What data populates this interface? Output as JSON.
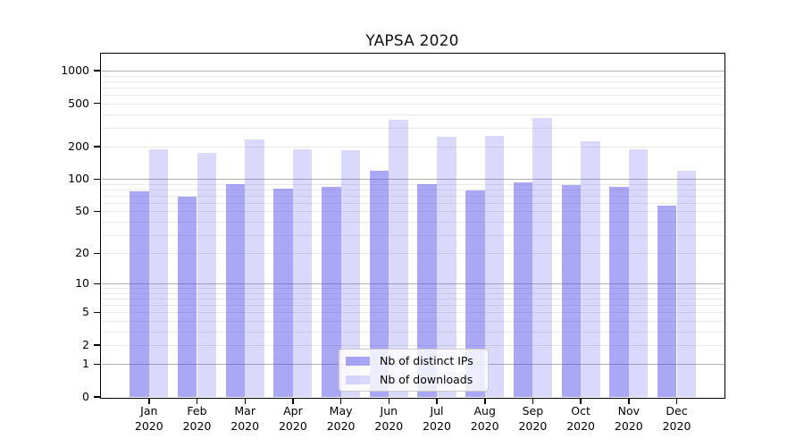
{
  "chart_data": {
    "type": "bar",
    "title": "YAPSA 2020",
    "categories": [
      "Jan",
      "Feb",
      "Mar",
      "Apr",
      "May",
      "Jun",
      "Jul",
      "Aug",
      "Sep",
      "Oct",
      "Nov",
      "Dec"
    ],
    "year": "2020",
    "series": [
      {
        "name": "Nb of distinct IPs",
        "key": "distinct-ips",
        "color_hex": "#aaa7f0",
        "color_rgba": "rgba(85,80,235,0.5)",
        "values": [
          77,
          68,
          90,
          82,
          85,
          119,
          90,
          79,
          94,
          88,
          84,
          57
        ]
      },
      {
        "name": "Nb of downloads",
        "key": "downloads",
        "color_hex": "#dcdbf8",
        "color_rgba": "rgba(85,80,235,0.22)",
        "values": [
          188,
          175,
          233,
          189,
          185,
          351,
          245,
          251,
          369,
          223,
          190,
          120
        ]
      }
    ],
    "xlabel": "",
    "ylabel": "",
    "yscale": "log10(1+y)",
    "ylim": [
      0,
      1440
    ],
    "yticks": [
      0,
      1,
      2,
      5,
      10,
      20,
      50,
      100,
      200,
      500,
      1000
    ],
    "grid": {
      "on": true,
      "major_values": [
        1,
        10,
        100,
        1000
      ],
      "minor_values": [
        2,
        3,
        4,
        5,
        6,
        7,
        8,
        9,
        20,
        30,
        40,
        50,
        60,
        70,
        80,
        90,
        200,
        300,
        400,
        500,
        600,
        700,
        800,
        900
      ],
      "major_color": "#b0b0b0",
      "minor_color": "#e9e9e9"
    },
    "legend": {
      "position": "lower center"
    },
    "axis_color": "#000000",
    "background_color": "#ffffff"
  }
}
